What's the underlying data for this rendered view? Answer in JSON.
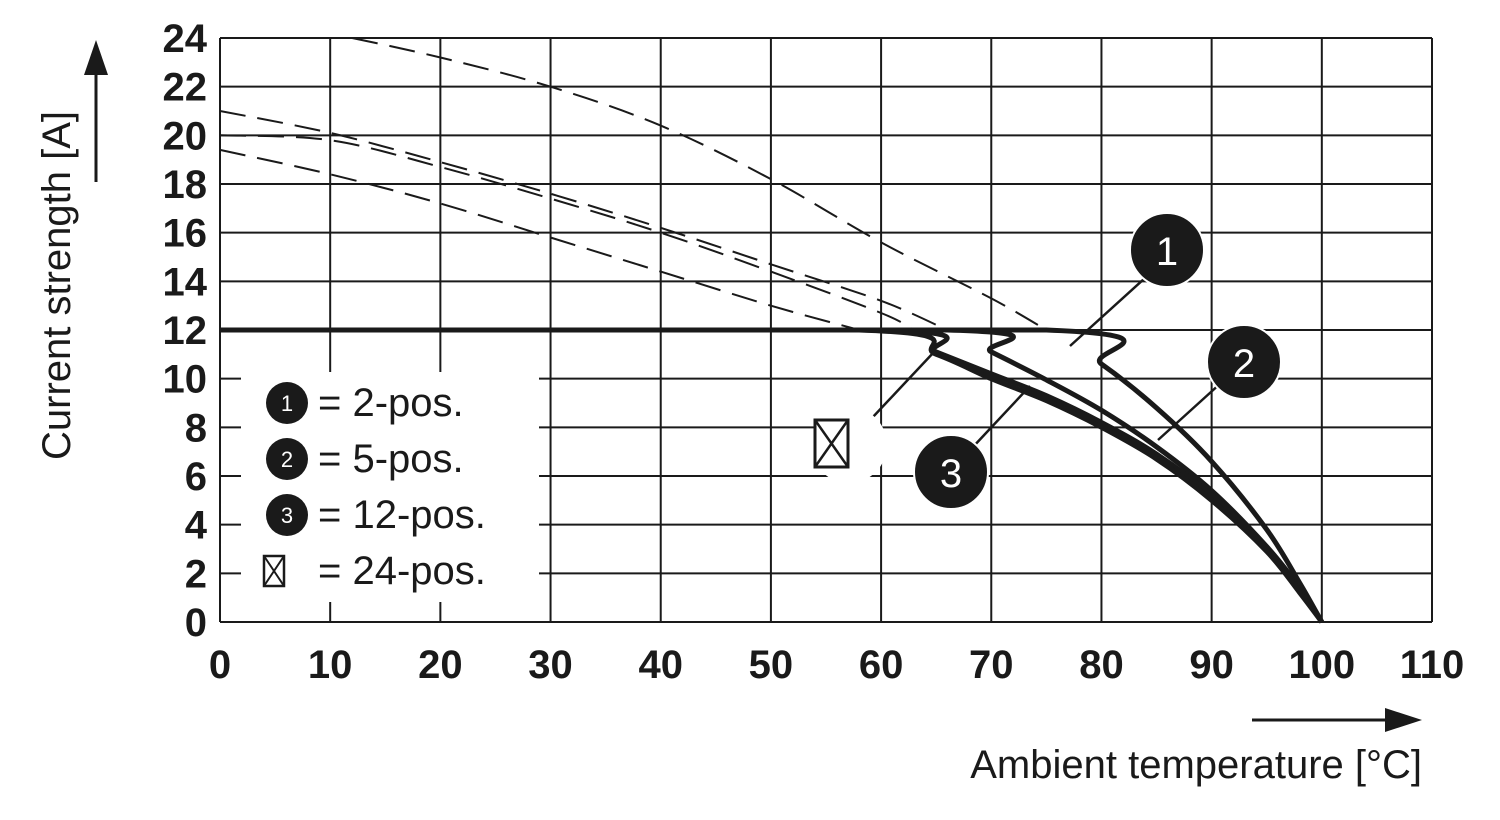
{
  "chart_data": {
    "type": "line",
    "title": "",
    "xlabel": "Ambient temperature [°C]",
    "ylabel": "Current strength [A]",
    "xlim": [
      0,
      110
    ],
    "ylim": [
      0,
      24
    ],
    "xticks": [
      "0",
      "10",
      "20",
      "30",
      "40",
      "50",
      "60",
      "70",
      "80",
      "90",
      "100",
      "110"
    ],
    "yticks": [
      "0",
      "2",
      "4",
      "6",
      "8",
      "10",
      "12",
      "14",
      "16",
      "18",
      "20",
      "22",
      "24"
    ],
    "grid": true,
    "legend_position": "lower-left",
    "series": [
      {
        "marker": "1",
        "name": "= 2-pos.",
        "style": "solid",
        "points": [
          [
            0,
            12
          ],
          [
            75,
            12
          ],
          [
            80,
            10.6
          ],
          [
            85,
            8.8
          ],
          [
            90,
            6.6
          ],
          [
            95,
            3.8
          ],
          [
            98,
            1.6
          ],
          [
            100,
            0
          ]
        ]
      },
      {
        "marker": "2",
        "name": "= 5-pos.",
        "style": "solid",
        "points": [
          [
            0,
            12
          ],
          [
            66,
            12
          ],
          [
            70,
            11.1
          ],
          [
            75,
            9.95
          ],
          [
            80,
            8.7
          ],
          [
            85,
            7.2
          ],
          [
            90,
            5.4
          ],
          [
            95,
            3.1
          ],
          [
            98,
            1.4
          ],
          [
            100,
            0
          ]
        ]
      },
      {
        "marker": "3",
        "name": "= 12-pos.",
        "style": "solid",
        "points": [
          [
            0,
            12
          ],
          [
            60,
            12
          ],
          [
            65,
            11.1
          ],
          [
            70,
            10.2
          ],
          [
            75,
            9.3
          ],
          [
            80,
            8.2
          ],
          [
            85,
            6.9
          ],
          [
            90,
            5.2
          ],
          [
            95,
            3.0
          ],
          [
            98,
            1.3
          ],
          [
            100,
            0
          ]
        ]
      },
      {
        "marker": "box",
        "name": "= 24-pos.",
        "style": "solid",
        "points": [
          [
            0,
            12
          ],
          [
            58,
            12
          ],
          [
            65,
            11.0
          ],
          [
            70,
            10.0
          ],
          [
            75,
            9.1
          ],
          [
            80,
            8.0
          ],
          [
            85,
            6.7
          ],
          [
            90,
            5.0
          ],
          [
            95,
            2.9
          ],
          [
            98,
            1.2
          ],
          [
            100,
            0
          ]
        ]
      },
      {
        "style": "dashed",
        "points": [
          [
            12,
            24
          ],
          [
            20,
            23.2
          ],
          [
            30,
            22.0
          ],
          [
            40,
            20.4
          ],
          [
            50,
            18.2
          ],
          [
            60,
            15.6
          ],
          [
            70,
            13.3
          ],
          [
            75,
            12
          ]
        ]
      },
      {
        "style": "dashed",
        "points": [
          [
            0,
            21.0
          ],
          [
            10,
            20.1
          ],
          [
            20,
            18.9
          ],
          [
            30,
            17.6
          ],
          [
            40,
            16.2
          ],
          [
            50,
            14.7
          ],
          [
            60,
            13.2
          ],
          [
            66,
            12
          ]
        ]
      },
      {
        "style": "dashed",
        "points": [
          [
            0,
            20.0
          ],
          [
            10,
            19.8
          ],
          [
            20,
            18.7
          ],
          [
            30,
            17.4
          ],
          [
            40,
            16.0
          ],
          [
            50,
            14.4
          ],
          [
            60,
            12.7
          ],
          [
            63,
            12
          ]
        ]
      },
      {
        "style": "dashed",
        "points": [
          [
            0,
            19.4
          ],
          [
            10,
            18.4
          ],
          [
            20,
            17.2
          ],
          [
            30,
            15.8
          ],
          [
            40,
            14.4
          ],
          [
            50,
            13.0
          ],
          [
            58,
            12
          ]
        ]
      }
    ]
  },
  "colors": {
    "ink": "#1a1a1a",
    "grid": "#1a1a1a",
    "background": "#ffffff"
  },
  "icons": {
    "series_box_marker": "crossed-box-icon"
  }
}
